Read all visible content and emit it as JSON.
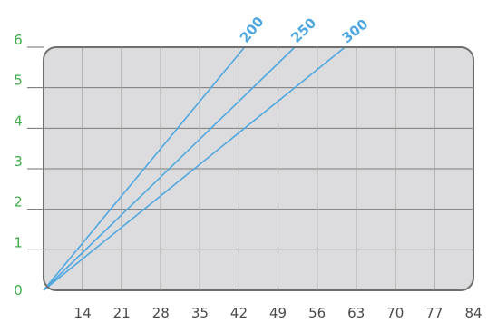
{
  "chart_data": {
    "type": "line",
    "title": "",
    "xlabel": "",
    "ylabel": "",
    "xlim": [
      7,
      84
    ],
    "ylim": [
      0,
      6
    ],
    "x_ticks": [
      "14",
      "21",
      "28",
      "35",
      "42",
      "49",
      "56",
      "63",
      "70",
      "77",
      "84"
    ],
    "y_ticks": [
      "0",
      "1",
      "2",
      "3",
      "4",
      "5",
      "6"
    ],
    "grid": true,
    "series": [
      {
        "name": "200",
        "x": [
          7,
          43
        ],
        "y": [
          0,
          6
        ]
      },
      {
        "name": "250",
        "x": [
          7,
          52
        ],
        "y": [
          0,
          6
        ]
      },
      {
        "name": "300",
        "x": [
          7,
          61
        ],
        "y": [
          0,
          6
        ]
      }
    ],
    "colors": {
      "plot_bg": "#dcdcde",
      "grid": "#7b7b7b",
      "frame": "#6f6f6f",
      "line": "#4ea7e0",
      "y_tick_text": "#3fae49",
      "x_tick_text": "#4a4a4a"
    }
  }
}
